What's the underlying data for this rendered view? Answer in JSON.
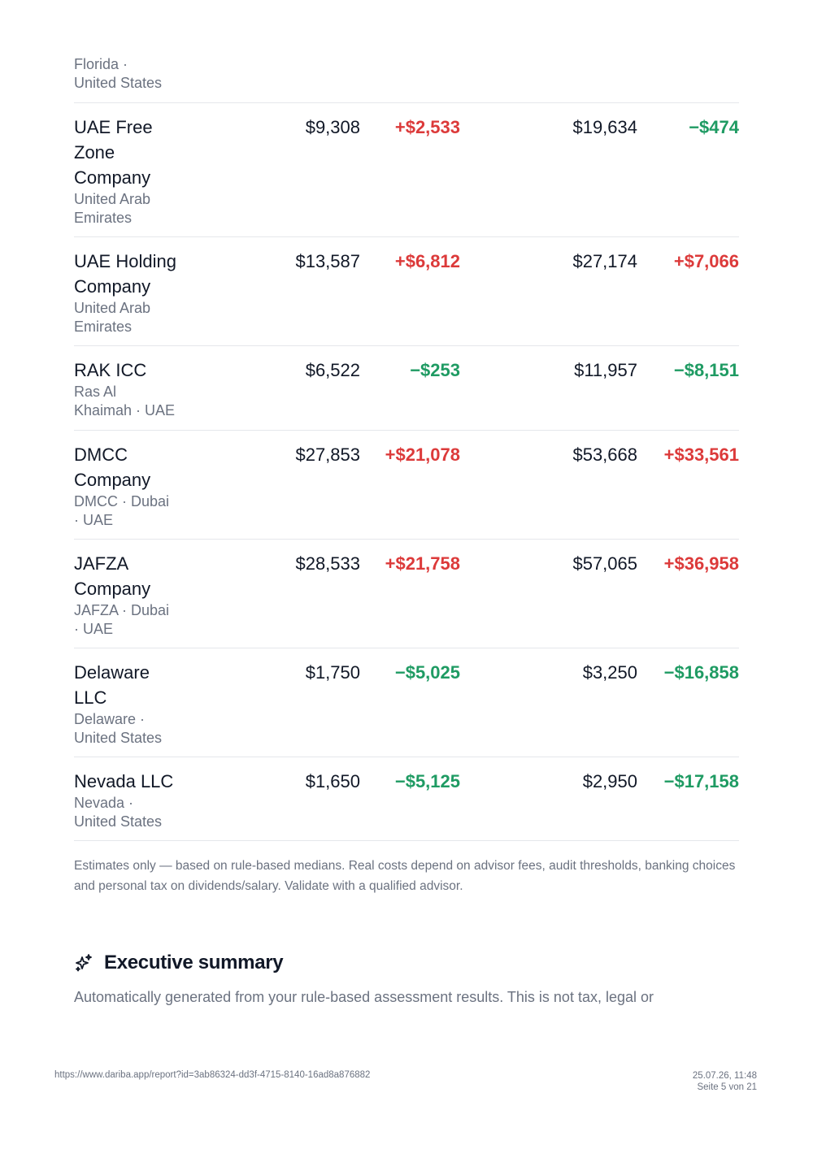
{
  "top_location": {
    "line1": "Florida ·",
    "line2": "United States"
  },
  "rows": [
    {
      "name_lines": [
        "UAE Free",
        "Zone",
        "Company"
      ],
      "location_lines": [
        "United Arab",
        "Emirates"
      ],
      "v1": "$9,308",
      "d1": "+$2,533",
      "v2": "$19,634",
      "d2": "−$474"
    },
    {
      "name_lines": [
        "UAE Holding",
        "Company"
      ],
      "location_lines": [
        "United Arab",
        "Emirates"
      ],
      "v1": "$13,587",
      "d1": "+$6,812",
      "v2": "$27,174",
      "d2": "+$7,066"
    },
    {
      "name_lines": [
        "RAK ICC"
      ],
      "location_lines": [
        "Ras Al",
        "Khaimah · UAE"
      ],
      "v1": "$6,522",
      "d1": "−$253",
      "v2": "$11,957",
      "d2": "−$8,151"
    },
    {
      "name_lines": [
        "DMCC",
        "Company"
      ],
      "location_lines": [
        "DMCC · Dubai",
        "· UAE"
      ],
      "v1": "$27,853",
      "d1": "+$21,078",
      "v2": "$53,668",
      "d2": "+$33,561"
    },
    {
      "name_lines": [
        "JAFZA",
        "Company"
      ],
      "location_lines": [
        "JAFZA · Dubai",
        "· UAE"
      ],
      "v1": "$28,533",
      "d1": "+$21,758",
      "v2": "$57,065",
      "d2": "+$36,958"
    },
    {
      "name_lines": [
        "Delaware",
        "LLC"
      ],
      "location_lines": [
        "Delaware ·",
        "United States"
      ],
      "v1": "$1,750",
      "d1": "−$5,025",
      "v2": "$3,250",
      "d2": "−$16,858"
    },
    {
      "name_lines": [
        "Nevada LLC"
      ],
      "location_lines": [
        "Nevada ·",
        "United States"
      ],
      "v1": "$1,650",
      "d1": "−$5,125",
      "v2": "$2,950",
      "d2": "−$17,158"
    }
  ],
  "note": "Estimates only — based on rule-based medians. Real costs depend on advisor fees, audit thresholds, banking choices and personal tax on dividends/salary. Validate with a qualified advisor.",
  "summary": {
    "icon": "sparkle-icon",
    "title": "Executive summary",
    "text": "Automatically generated from your rule-based assessment results. This is not tax, legal or"
  },
  "footer": {
    "url": "https://www.dariba.app/report?id=3ab86324-dd3f-4715-8140-16ad8a876882",
    "datetime": "25.07.26, 11:48",
    "page": "Seite 5 von 21"
  },
  "colors": {
    "increase": "#dc3a3a",
    "decrease": "#1f9b63",
    "muted": "#6b7280"
  }
}
